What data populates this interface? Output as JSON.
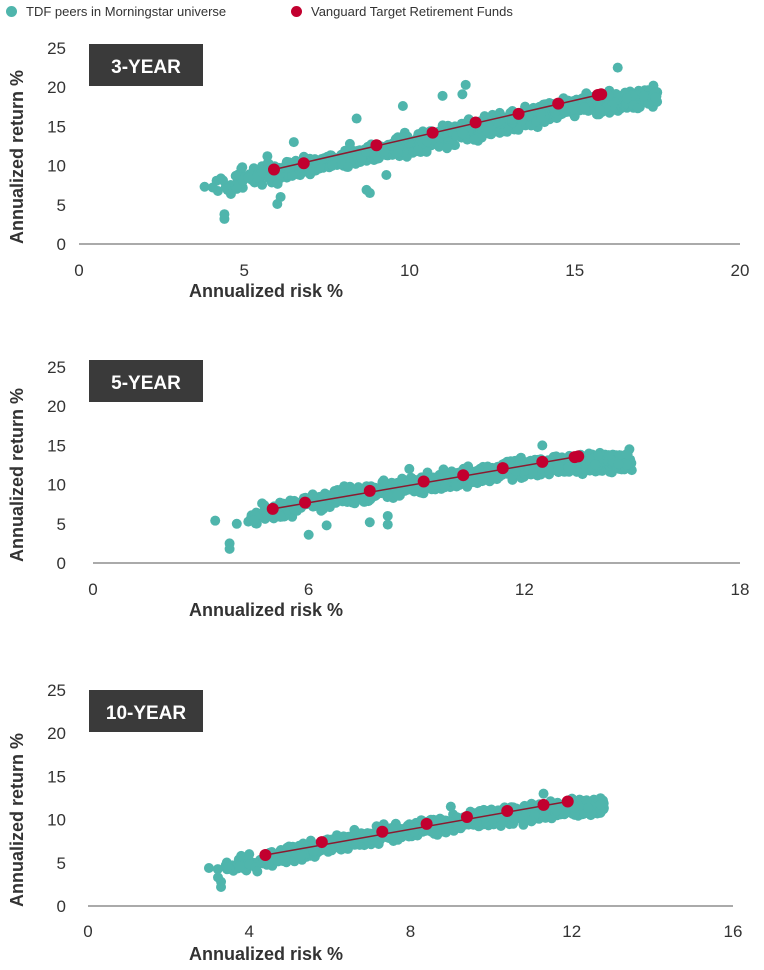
{
  "legend": {
    "peer_label": "TDF peers in Morningstar universe",
    "vanguard_label": "Vanguard Target Retirement Funds",
    "peer_color": "#4fb5ac",
    "vanguard_color": "#c2002f"
  },
  "colors": {
    "panel_bg": "#3a3a3a",
    "panel_text": "#ffffff",
    "axis": "#555555",
    "trend_line": "#8b1a2f"
  },
  "chart_data": [
    {
      "type": "scatter",
      "panel_label": "3-YEAR",
      "xlabel": "Annualized risk %",
      "ylabel": "Annualized return %",
      "xlim": [
        0,
        20
      ],
      "ylim": [
        0,
        25
      ],
      "xticks": [
        0,
        5,
        10,
        15,
        20
      ],
      "yticks": [
        0,
        5,
        10,
        15,
        20,
        25
      ],
      "series": [
        {
          "name": "TDF peers in Morningstar universe",
          "kind": "cloud",
          "trend": [
            [
              4.0,
              7.0
            ],
            [
              6.0,
              9.2
            ],
            [
              9.0,
              11.8
            ],
            [
              12.0,
              14.6
            ],
            [
              15.0,
              17.5
            ],
            [
              17.5,
              18.8
            ]
          ],
          "spread": 1.4,
          "outliers": [
            [
              3.8,
              7.3
            ],
            [
              4.4,
              3.8
            ],
            [
              4.4,
              3.2
            ],
            [
              6.1,
              6.0
            ],
            [
              6.0,
              5.1
            ],
            [
              8.8,
              6.5
            ],
            [
              8.7,
              6.9
            ],
            [
              9.3,
              8.8
            ],
            [
              8.4,
              16.0
            ],
            [
              9.8,
              17.6
            ],
            [
              11.0,
              18.9
            ],
            [
              11.7,
              20.3
            ],
            [
              11.6,
              19.1
            ],
            [
              16.3,
              22.5
            ],
            [
              6.5,
              13.0
            ],
            [
              5.7,
              11.2
            ]
          ]
        },
        {
          "name": "Vanguard Target Retirement Funds",
          "kind": "points",
          "points": [
            [
              5.9,
              9.5
            ],
            [
              6.8,
              10.3
            ],
            [
              9.0,
              12.6
            ],
            [
              10.7,
              14.2
            ],
            [
              12.0,
              15.5
            ],
            [
              13.3,
              16.6
            ],
            [
              14.5,
              17.9
            ],
            [
              15.7,
              19.0
            ],
            [
              15.8,
              19.1
            ]
          ]
        }
      ]
    },
    {
      "type": "scatter",
      "panel_label": "5-YEAR",
      "xlabel": "Annualized risk %",
      "ylabel": "Annualized return %",
      "xlim": [
        0,
        18
      ],
      "ylim": [
        0,
        25
      ],
      "xticks": [
        0,
        6,
        12,
        18
      ],
      "yticks": [
        0,
        5,
        10,
        15,
        20,
        25
      ],
      "series": [
        {
          "name": "TDF peers in Morningstar universe",
          "kind": "cloud",
          "trend": [
            [
              4.2,
              5.6
            ],
            [
              6.0,
              7.6
            ],
            [
              9.0,
              10.0
            ],
            [
              12.0,
              12.2
            ],
            [
              15.0,
              13.0
            ]
          ],
          "spread": 1.2,
          "outliers": [
            [
              3.4,
              5.4
            ],
            [
              3.8,
              2.5
            ],
            [
              3.8,
              1.8
            ],
            [
              4.0,
              5.0
            ],
            [
              6.0,
              3.6
            ],
            [
              6.5,
              4.8
            ],
            [
              7.7,
              5.2
            ],
            [
              8.2,
              6.0
            ],
            [
              8.2,
              4.9
            ],
            [
              8.8,
              12.0
            ],
            [
              12.5,
              15.0
            ],
            [
              5.2,
              7.7
            ]
          ]
        },
        {
          "name": "Vanguard Target Retirement Funds",
          "kind": "points",
          "points": [
            [
              5.0,
              6.9
            ],
            [
              5.9,
              7.7
            ],
            [
              7.7,
              9.2
            ],
            [
              9.2,
              10.4
            ],
            [
              10.3,
              11.2
            ],
            [
              11.4,
              12.1
            ],
            [
              12.5,
              12.9
            ],
            [
              13.4,
              13.5
            ],
            [
              13.5,
              13.6
            ]
          ]
        }
      ]
    },
    {
      "type": "scatter",
      "panel_label": "10-YEAR",
      "xlabel": "Annualized risk %",
      "ylabel": "Annualized return %",
      "xlim": [
        0,
        16
      ],
      "ylim": [
        0,
        25
      ],
      "xticks": [
        0,
        4,
        8,
        12,
        16
      ],
      "yticks": [
        0,
        5,
        10,
        15,
        20,
        25
      ],
      "series": [
        {
          "name": "TDF peers in Morningstar universe",
          "kind": "cloud",
          "trend": [
            [
              3.2,
              4.0
            ],
            [
              4.5,
              5.5
            ],
            [
              6.0,
              7.0
            ],
            [
              8.0,
              8.9
            ],
            [
              10.0,
              10.3
            ],
            [
              12.0,
              11.4
            ],
            [
              12.8,
              11.6
            ]
          ],
          "spread": 1.0,
          "outliers": [
            [
              3.0,
              4.4
            ],
            [
              3.3,
              2.8
            ],
            [
              3.3,
              2.2
            ],
            [
              3.8,
              5.8
            ],
            [
              4.0,
              6.0
            ],
            [
              4.2,
              4.0
            ],
            [
              9.0,
              11.5
            ],
            [
              11.3,
              13.0
            ],
            [
              10.8,
              9.4
            ],
            [
              11.0,
              9.8
            ]
          ]
        },
        {
          "name": "Vanguard Target Retirement Funds",
          "kind": "points",
          "points": [
            [
              4.4,
              5.9
            ],
            [
              5.8,
              7.4
            ],
            [
              7.3,
              8.6
            ],
            [
              8.4,
              9.5
            ],
            [
              9.4,
              10.3
            ],
            [
              10.4,
              11.0
            ],
            [
              11.3,
              11.7
            ],
            [
              11.9,
              12.1
            ]
          ]
        }
      ]
    }
  ]
}
